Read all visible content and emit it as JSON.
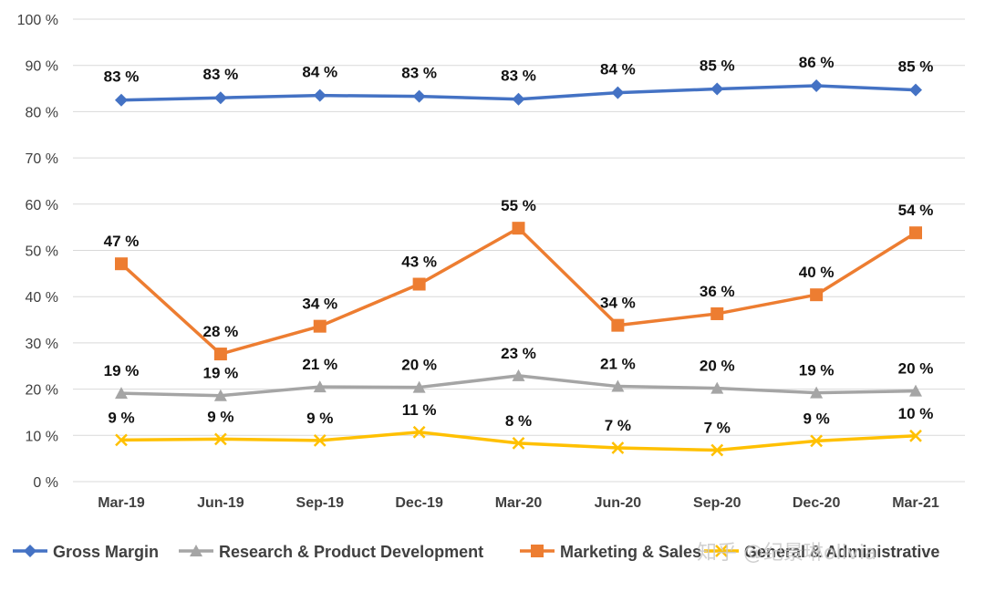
{
  "colors": {
    "gross_margin": "#4472C4",
    "research": "#A5A5A5",
    "marketing": "#ED7D31",
    "general": "#FFC000",
    "grid": "#d9d9d9"
  },
  "watermark": "知乎 @纪景琳olivia",
  "chart_data": {
    "type": "line",
    "categories": [
      "Mar-19",
      "Jun-19",
      "Sep-19",
      "Dec-19",
      "Mar-20",
      "Jun-20",
      "Sep-20",
      "Dec-20",
      "Mar-21"
    ],
    "ylim": [
      0,
      100
    ],
    "yticks": [
      0,
      10,
      20,
      30,
      40,
      50,
      60,
      70,
      80,
      90,
      100
    ],
    "ytick_labels": [
      "0 %",
      "10 %",
      "20 %",
      "30 %",
      "40 %",
      "50 %",
      "60 %",
      "70 %",
      "80 %",
      "90 %",
      "100 %"
    ],
    "grid": true,
    "legend": "bottom",
    "series": [
      {
        "key": "gross_margin",
        "name": "Gross Margin",
        "marker": "diamond",
        "values": [
          82.5,
          83.0,
          83.5,
          83.3,
          82.7,
          84.1,
          84.9,
          85.6,
          84.7
        ],
        "labels": [
          "83 %",
          "83 %",
          "84 %",
          "83 %",
          "83 %",
          "84 %",
          "85 %",
          "86 %",
          "85 %"
        ]
      },
      {
        "key": "research",
        "name": "Research & Product Development",
        "marker": "triangle",
        "values": [
          19.1,
          18.6,
          20.5,
          20.4,
          22.9,
          20.6,
          20.2,
          19.2,
          19.6
        ],
        "labels": [
          "19 %",
          "19 %",
          "21 %",
          "20 %",
          "23 %",
          "21 %",
          "20 %",
          "19 %",
          "20 %"
        ]
      },
      {
        "key": "marketing",
        "name": "Marketing & Sales",
        "marker": "square",
        "values": [
          47.1,
          27.6,
          33.6,
          42.7,
          54.8,
          33.8,
          36.3,
          40.4,
          53.8
        ],
        "labels": [
          "47 %",
          "28 %",
          "34 %",
          "43 %",
          "55 %",
          "34 %",
          "36 %",
          "40 %",
          "54 %"
        ]
      },
      {
        "key": "general",
        "name": "General & Administrative",
        "marker": "x",
        "values": [
          9.0,
          9.2,
          8.9,
          10.7,
          8.3,
          7.3,
          6.8,
          8.8,
          9.9
        ],
        "labels": [
          "9 %",
          "9 %",
          "9 %",
          "11 %",
          "8 %",
          "7 %",
          "7 %",
          "9 %",
          "10 %"
        ]
      }
    ]
  }
}
